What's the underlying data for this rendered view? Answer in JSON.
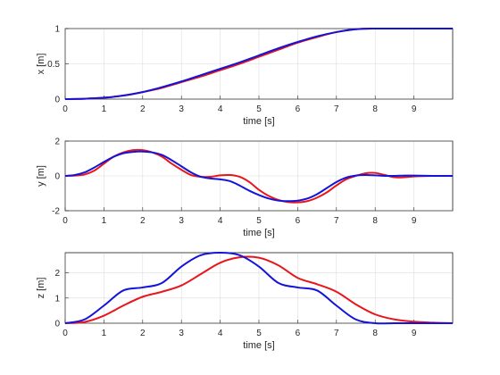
{
  "chart_data": [
    {
      "type": "line",
      "xlabel": "time [s]",
      "ylabel": "x [m]",
      "xlim": [
        0,
        10
      ],
      "ylim": [
        0,
        1
      ],
      "xticks": [
        0,
        1,
        2,
        3,
        4,
        5,
        6,
        7,
        8,
        9
      ],
      "yticks": [
        0,
        0.5,
        1
      ],
      "ytick_labels": [
        "0",
        "0.5",
        "1"
      ],
      "grid": true,
      "series": [
        {
          "color": "#e8161c",
          "x": [
            0,
            0.5,
            1,
            1.5,
            2,
            2.5,
            3,
            3.5,
            4,
            4.5,
            5,
            5.5,
            6,
            6.5,
            7,
            7.5,
            8,
            8.5,
            9,
            9.5,
            10
          ],
          "y": [
            0,
            0.005,
            0.02,
            0.05,
            0.1,
            0.16,
            0.24,
            0.32,
            0.41,
            0.5,
            0.6,
            0.7,
            0.8,
            0.88,
            0.95,
            0.99,
            1.0,
            1.0,
            1.0,
            1.0,
            1.0
          ]
        },
        {
          "color": "#1414d9",
          "x": [
            0,
            0.5,
            1,
            1.5,
            2,
            2.5,
            3,
            3.5,
            4,
            4.5,
            5,
            5.5,
            6,
            6.5,
            7,
            7.5,
            8,
            8.5,
            9,
            9.5,
            10
          ],
          "y": [
            0,
            0.005,
            0.02,
            0.05,
            0.1,
            0.17,
            0.25,
            0.34,
            0.43,
            0.52,
            0.62,
            0.72,
            0.81,
            0.89,
            0.95,
            0.99,
            1.0,
            1.0,
            1.0,
            1.0,
            1.0
          ]
        }
      ]
    },
    {
      "type": "line",
      "xlabel": "time [s]",
      "ylabel": "y [m]",
      "xlim": [
        0,
        10
      ],
      "ylim": [
        -2,
        2
      ],
      "xticks": [
        0,
        1,
        2,
        3,
        4,
        5,
        6,
        7,
        8,
        9
      ],
      "yticks": [
        -2,
        0,
        2
      ],
      "ytick_labels": [
        "-2",
        "0",
        "2"
      ],
      "grid": true,
      "series": [
        {
          "color": "#e8161c",
          "x": [
            0,
            0.25,
            0.5,
            0.75,
            1,
            1.25,
            1.5,
            1.75,
            2,
            2.25,
            2.5,
            2.75,
            3,
            3.25,
            3.5,
            3.75,
            4,
            4.25,
            4.5,
            4.75,
            5,
            5.25,
            5.5,
            5.75,
            6,
            6.25,
            6.5,
            6.75,
            7,
            7.25,
            7.5,
            7.75,
            8,
            8.25,
            8.5,
            8.75,
            9,
            9.5,
            10
          ],
          "y": [
            0,
            0.02,
            0.08,
            0.3,
            0.7,
            1.1,
            1.35,
            1.48,
            1.48,
            1.35,
            1.1,
            0.7,
            0.35,
            0.05,
            -0.05,
            -0.05,
            0.03,
            0.05,
            -0.05,
            -0.35,
            -0.8,
            -1.15,
            -1.38,
            -1.5,
            -1.52,
            -1.45,
            -1.25,
            -0.95,
            -0.55,
            -0.2,
            0.0,
            0.15,
            0.17,
            0.05,
            -0.08,
            -0.08,
            -0.03,
            0.0,
            0.0
          ]
        },
        {
          "color": "#1414d9",
          "x": [
            0,
            0.25,
            0.5,
            0.75,
            1,
            1.25,
            1.5,
            1.75,
            2,
            2.25,
            2.5,
            2.75,
            3,
            3.25,
            3.5,
            3.75,
            4,
            4.25,
            4.5,
            4.75,
            5,
            5.25,
            5.5,
            5.75,
            6,
            6.25,
            6.5,
            6.75,
            7,
            7.25,
            7.5,
            7.75,
            8,
            8.25,
            8.5,
            8.75,
            9,
            9.5,
            10
          ],
          "y": [
            0,
            0.05,
            0.2,
            0.48,
            0.8,
            1.1,
            1.3,
            1.38,
            1.4,
            1.35,
            1.2,
            0.9,
            0.55,
            0.2,
            -0.05,
            -0.15,
            -0.2,
            -0.3,
            -0.55,
            -0.85,
            -1.1,
            -1.3,
            -1.42,
            -1.45,
            -1.42,
            -1.3,
            -1.05,
            -0.7,
            -0.35,
            -0.1,
            0.02,
            0.05,
            0.03,
            0.0,
            0.0,
            0.02,
            0.02,
            0.0,
            0.0
          ]
        }
      ]
    },
    {
      "type": "line",
      "xlabel": "time [s]",
      "ylabel": "z [m]",
      "xlim": [
        0,
        10
      ],
      "ylim": [
        0,
        2.8
      ],
      "xticks": [
        0,
        1,
        2,
        3,
        4,
        5,
        6,
        7,
        8,
        9
      ],
      "yticks": [
        0,
        1,
        2
      ],
      "ytick_labels": [
        "0",
        "1",
        "2"
      ],
      "grid": true,
      "series": [
        {
          "color": "#e8161c",
          "x": [
            0,
            0.5,
            1,
            1.5,
            2,
            2.5,
            3,
            3.5,
            4,
            4.5,
            5,
            5.5,
            6,
            6.5,
            7,
            7.5,
            8,
            8.5,
            9,
            9.5,
            10
          ],
          "y": [
            0,
            0.05,
            0.3,
            0.7,
            1.05,
            1.25,
            1.5,
            1.95,
            2.4,
            2.62,
            2.6,
            2.3,
            1.8,
            1.55,
            1.25,
            0.75,
            0.35,
            0.15,
            0.06,
            0.02,
            0.0
          ]
        },
        {
          "color": "#1414d9",
          "x": [
            0,
            0.5,
            1,
            1.5,
            2,
            2.5,
            3,
            3.5,
            4,
            4.5,
            5,
            5.5,
            6,
            6.5,
            7,
            7.5,
            8,
            8.5,
            9,
            9.5,
            10
          ],
          "y": [
            0,
            0.15,
            0.7,
            1.3,
            1.42,
            1.6,
            2.25,
            2.7,
            2.8,
            2.7,
            2.25,
            1.6,
            1.42,
            1.3,
            0.7,
            0.15,
            0.0,
            0.0,
            0.0,
            0.0,
            0.0
          ]
        }
      ]
    }
  ]
}
